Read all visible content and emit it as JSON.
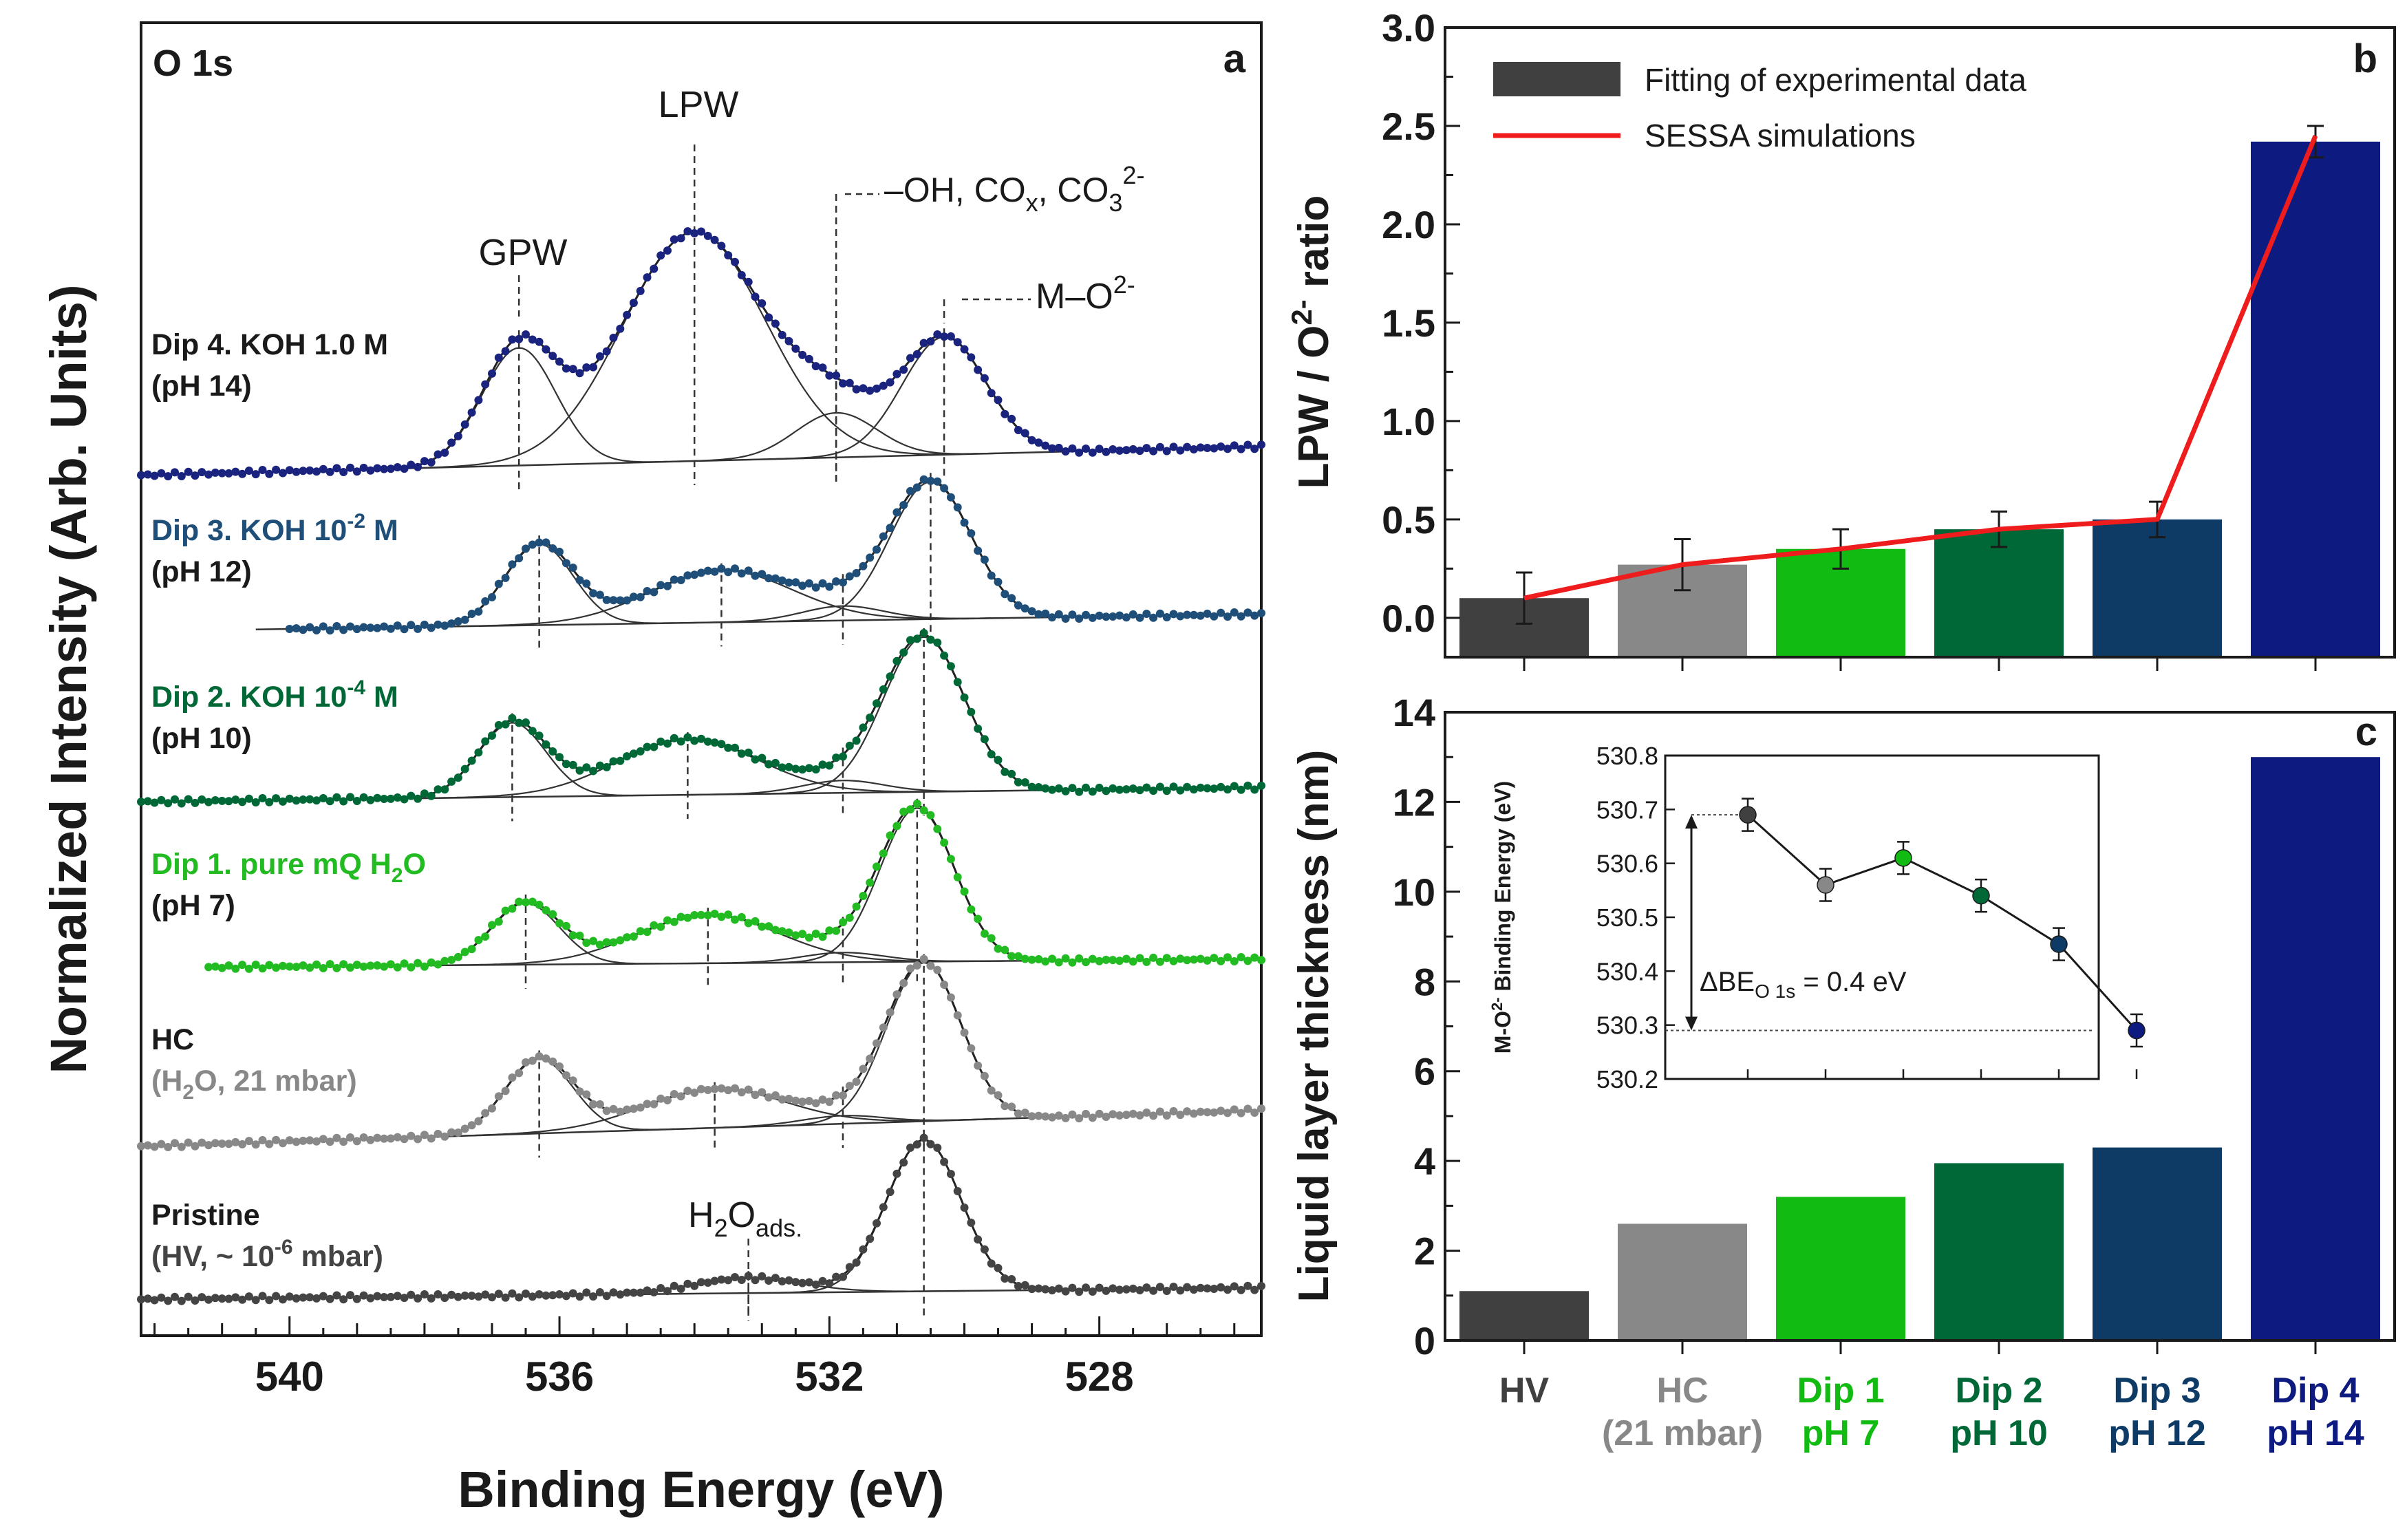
{
  "panel_a": {
    "letter": "a",
    "region_label": "O 1s",
    "ylabel": "Normalized Intensity (Arb. Units)",
    "xlabel": "Binding Energy (eV)",
    "xticks": [
      "540",
      "536",
      "532",
      "528"
    ],
    "peak_labels": {
      "gpw": "GPW",
      "lpw": "LPW",
      "oh_prefix": "–OH, CO",
      "oh_sub": "x",
      "oh_mid": ", CO",
      "oh_sub2": "3",
      "oh_sup": "2-",
      "mo": "M–O",
      "mo_sup": "2-",
      "h2o": "H",
      "h2o_sub": "2",
      "h2o_o": "O",
      "h2o_ads": "ads."
    },
    "spectra": [
      {
        "line1": "Dip 4. KOH 1.0 M",
        "line2": "(pH 14)",
        "color": "#1a237e"
      },
      {
        "line1_a": "Dip 3. KOH 10",
        "line1_sup": "-2",
        "line1_b": " M",
        "line2": "(pH 12)",
        "color": "#1f4e79"
      },
      {
        "line1_a": "Dip 2. KOH 10",
        "line1_sup": "-4",
        "line1_b": " M",
        "line2": "(pH 10)",
        "color": "#006837"
      },
      {
        "line1_a": "Dip 1. pure mQ H",
        "line1_sub": "2",
        "line1_b": "O",
        "line2": "(pH 7)",
        "color": "#22bb22"
      },
      {
        "line1": "HC",
        "line2_a": "(H",
        "line2_sub": "2",
        "line2_b": "O, 21 mbar)",
        "color": "#888888"
      },
      {
        "line1": "Pristine",
        "line2_a": "(HV, ~ 10",
        "line2_sup": "-6",
        "line2_b": " mbar)",
        "color": "#444444"
      }
    ]
  },
  "panel_b": {
    "letter": "b",
    "ylabel_a": "LPW / O",
    "ylabel_sup": "2-",
    "ylabel_b": " ratio",
    "legend_bar": "Fitting of experimental data",
    "legend_line": "SESSA simulations",
    "yticks": [
      "0.0",
      "0.5",
      "1.0",
      "1.5",
      "2.0",
      "2.5",
      "3.0"
    ]
  },
  "panel_c": {
    "letter": "c",
    "ylabel": "Liquid layer thickness (nm)",
    "yticks": [
      "0",
      "2",
      "4",
      "6",
      "8",
      "10",
      "12",
      "14"
    ],
    "inset": {
      "ylabel_a": "M-O",
      "ylabel_sup": "2-",
      "ylabel_b": " Binding Energy (eV)",
      "yticks": [
        "530.2",
        "530.3",
        "530.4",
        "530.5",
        "530.6",
        "530.7",
        "530.8"
      ],
      "delta_a": "ΔBE",
      "delta_sub": "O 1s",
      "delta_b": " = 0.4 eV"
    }
  },
  "categories": [
    {
      "line1": "HV",
      "line2": "",
      "color": "#404040"
    },
    {
      "line1": "HC",
      "line2": "(21 mbar)",
      "color": "#888888"
    },
    {
      "line1": "Dip 1",
      "line2": "pH 7",
      "color": "#11bb11"
    },
    {
      "line1": "Dip 2",
      "line2": "pH 10",
      "color": "#006837"
    },
    {
      "line1": "Dip 3",
      "line2": "pH 12",
      "color": "#0d3b66"
    },
    {
      "line1": "Dip 4",
      "line2": "pH 14",
      "color": "#0d1a80"
    }
  ],
  "chart_data": [
    {
      "type": "line",
      "title": "O 1s",
      "xlabel": "Binding Energy (eV)",
      "ylabel": "Normalized Intensity (Arb. Units)",
      "xlim": [
        542.2,
        525.6
      ],
      "note": "Stacked XPS spectra, arbitrary offsets; peak positions in eV",
      "series": [
        {
          "name": "Dip 4. KOH 1.0 M (pH 14)",
          "peaks": [
            {
              "be": 536.6,
              "h": 0.95,
              "w": 0.55
            },
            {
              "be": 534.0,
              "h": 1.85,
              "w": 1.05
            },
            {
              "be": 531.9,
              "h": 0.36,
              "w": 0.6
            },
            {
              "be": 530.3,
              "h": 0.95,
              "w": 0.62
            }
          ]
        },
        {
          "name": "Dip 3. KOH 10-2 M (pH 12)",
          "peaks": [
            {
              "be": 536.3,
              "h": 0.56,
              "w": 0.5
            },
            {
              "be": 533.6,
              "h": 0.36,
              "w": 1.05
            },
            {
              "be": 531.8,
              "h": 0.1,
              "w": 0.6
            },
            {
              "be": 530.5,
              "h": 0.95,
              "w": 0.6
            }
          ]
        },
        {
          "name": "Dip 2. KOH 10-4 M (pH 10)",
          "peaks": [
            {
              "be": 536.7,
              "h": 0.48,
              "w": 0.5
            },
            {
              "be": 534.1,
              "h": 0.36,
              "w": 1.05
            },
            {
              "be": 531.8,
              "h": 0.08,
              "w": 0.6
            },
            {
              "be": 530.6,
              "h": 1.0,
              "w": 0.6
            }
          ]
        },
        {
          "name": "Dip 1. pure mQ H2O (pH 7)",
          "peaks": [
            {
              "be": 536.5,
              "h": 0.38,
              "w": 0.5
            },
            {
              "be": 533.8,
              "h": 0.3,
              "w": 1.05
            },
            {
              "be": 531.8,
              "h": 0.06,
              "w": 0.6
            },
            {
              "be": 530.7,
              "h": 0.95,
              "w": 0.55
            }
          ]
        },
        {
          "name": "HC (H2O, 21 mbar)",
          "peaks": [
            {
              "be": 536.3,
              "h": 0.46,
              "w": 0.5
            },
            {
              "be": 533.7,
              "h": 0.24,
              "w": 1.05
            },
            {
              "be": 531.8,
              "h": 0.05,
              "w": 0.6
            },
            {
              "be": 530.6,
              "h": 0.98,
              "w": 0.55
            }
          ]
        },
        {
          "name": "Pristine (HV, ~10-6 mbar)",
          "peaks": [
            {
              "be": 533.2,
              "h": 0.1,
              "w": 0.8
            },
            {
              "be": 530.6,
              "h": 1.0,
              "w": 0.55
            }
          ]
        }
      ],
      "guide_lines_be": {
        "gpw": 536.6,
        "lpw": 534.0,
        "oh": 531.9,
        "mo": 530.3,
        "h2o_ads": 533.2
      }
    },
    {
      "type": "bar",
      "title": "b",
      "ylabel": "LPW / O2- ratio",
      "ylim": [
        -0.2,
        3.0
      ],
      "categories": [
        "HV",
        "HC (21 mbar)",
        "Dip 1 pH 7",
        "Dip 2 pH 10",
        "Dip 3 pH 12",
        "Dip 4 pH 14"
      ],
      "series": [
        {
          "name": "Fitting of experimental data",
          "values": [
            0.1,
            0.27,
            0.35,
            0.45,
            0.5,
            2.42
          ],
          "errors": [
            0.13,
            0.13,
            0.1,
            0.09,
            0.09,
            0.08
          ]
        },
        {
          "name": "SESSA simulations",
          "values": [
            0.1,
            0.27,
            0.35,
            0.45,
            0.5,
            2.45
          ]
        }
      ]
    },
    {
      "type": "bar",
      "title": "c",
      "ylabel": "Liquid layer thickness (nm)",
      "ylim": [
        0,
        14
      ],
      "categories": [
        "HV",
        "HC (21 mbar)",
        "Dip 1 pH 7",
        "Dip 2 pH 10",
        "Dip 3 pH 12",
        "Dip 4 pH 14"
      ],
      "values": [
        1.1,
        2.6,
        3.2,
        3.95,
        4.3,
        13.0
      ]
    },
    {
      "type": "scatter",
      "title": "inset",
      "ylabel": "M-O2- Binding Energy (eV)",
      "ylim": [
        530.2,
        530.8
      ],
      "x": [
        "HV",
        "HC",
        "Dip 1",
        "Dip 2",
        "Dip 3",
        "Dip 4"
      ],
      "values": [
        530.69,
        530.56,
        530.61,
        530.54,
        530.45,
        530.29
      ],
      "errors": [
        0.03,
        0.03,
        0.03,
        0.03,
        0.03,
        0.03
      ],
      "annotation": "ΔBE O 1s = 0.4 eV"
    }
  ]
}
